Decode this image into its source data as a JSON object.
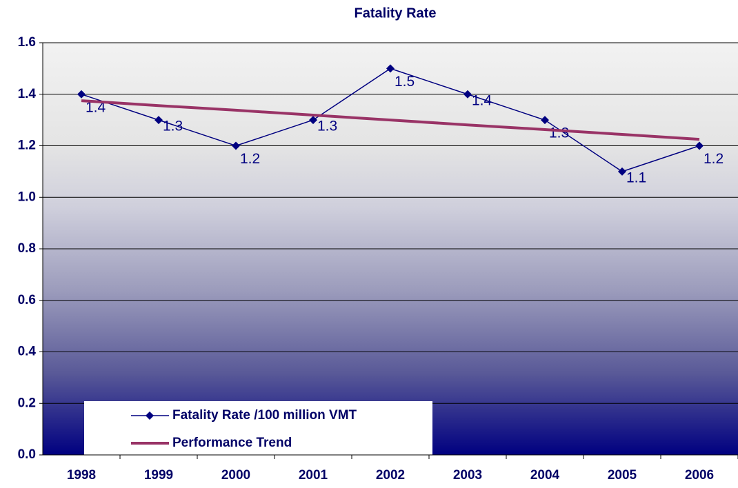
{
  "chart_data": {
    "type": "line",
    "title": "Fatality Rate",
    "categories": [
      "1998",
      "1999",
      "2000",
      "2001",
      "2002",
      "2003",
      "2004",
      "2005",
      "2006"
    ],
    "series": [
      {
        "name": "Fatality Rate /100 million VMT",
        "color": "#000080",
        "values": [
          1.4,
          1.3,
          1.2,
          1.3,
          1.5,
          1.4,
          1.3,
          1.1,
          1.2
        ],
        "markers": true,
        "data_labels": true
      },
      {
        "name": "Performance Trend",
        "color": "#993366",
        "values": [
          1.375,
          1.356,
          1.338,
          1.319,
          1.3,
          1.281,
          1.263,
          1.244,
          1.225
        ],
        "markers": false,
        "data_labels": false
      }
    ],
    "ylim": [
      0,
      1.6
    ],
    "yticks": [
      {
        "value": 0,
        "label": "0.0"
      },
      0.2,
      0.4,
      0.6,
      0.8,
      {
        "value": 1,
        "label": "1.0"
      },
      1.2,
      1.4,
      1.6
    ],
    "grid": true,
    "legend": "lower left"
  }
}
